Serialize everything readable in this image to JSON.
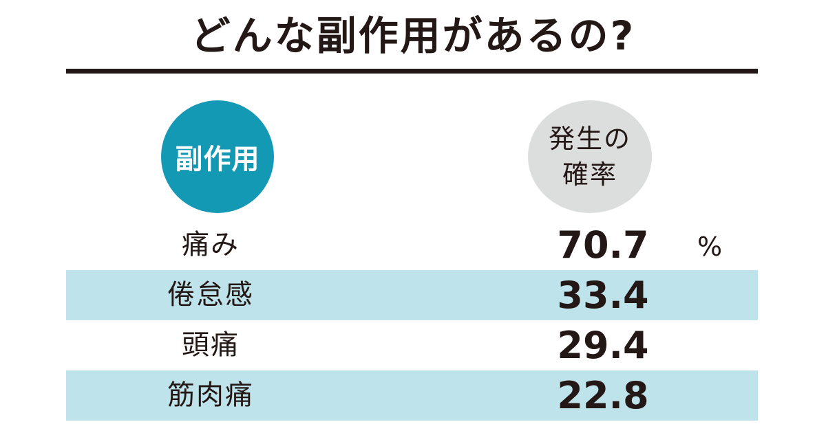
{
  "title": "どんな副作用があるの?",
  "colors": {
    "accent": "#1499b5",
    "header_rate_bg": "#dcdddd",
    "row_shade": "#bfe3ea",
    "text": "#231815"
  },
  "headers": {
    "item": "副作用",
    "rate": "発生の確率"
  },
  "rows": [
    {
      "item": "痛み",
      "value": "70.7",
      "unit": "%"
    },
    {
      "item": "倦怠感",
      "value": "33.4",
      "unit": ""
    },
    {
      "item": "頭痛",
      "value": "29.4",
      "unit": ""
    },
    {
      "item": "筋肉痛",
      "value": "22.8",
      "unit": ""
    }
  ],
  "chart_data": {
    "type": "table",
    "title": "どんな副作用があるの?",
    "columns": [
      "副作用",
      "発生の確率"
    ],
    "categories": [
      "痛み",
      "倦怠感",
      "頭痛",
      "筋肉痛"
    ],
    "values": [
      70.7,
      33.4,
      29.4,
      22.8
    ],
    "unit": "%"
  }
}
